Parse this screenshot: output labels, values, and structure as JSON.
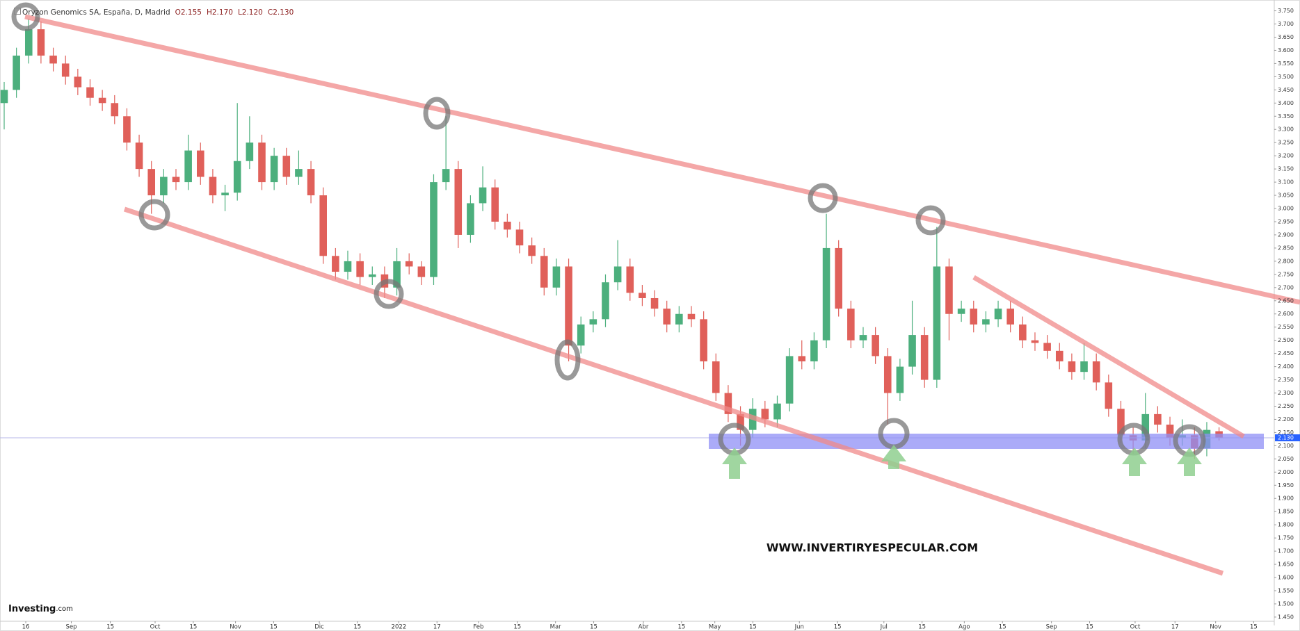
{
  "chart_data": {
    "type": "candlestick",
    "title": "Oryzon Genomics SA, España, D, Madrid",
    "ohlc_legend": [
      "O2.155",
      "H2.170",
      "L2.120",
      "C2.130"
    ],
    "last_price_label": "2.130",
    "watermark": "WWW.INVERTIRYESPECULAR.COM",
    "logo": [
      "Investing",
      ".com"
    ],
    "up_color": "#4caf7d",
    "down_color": "#e0605a",
    "open": [
      3.4,
      3.45,
      3.58,
      3.68,
      3.58,
      3.55,
      3.5,
      3.46,
      3.42,
      3.4,
      3.35,
      3.25,
      3.15,
      3.05,
      3.12,
      3.1,
      3.22,
      3.12,
      3.05,
      3.06,
      3.18,
      3.25,
      3.1,
      3.2,
      3.12,
      3.15,
      3.05,
      2.82,
      2.76,
      2.8,
      2.74,
      2.75,
      2.7,
      2.8,
      2.78,
      2.74,
      3.1,
      3.15,
      2.9,
      3.02,
      3.08,
      2.95,
      2.92,
      2.86,
      2.82,
      2.7,
      2.78,
      2.48,
      2.56,
      2.58,
      2.72,
      2.78,
      2.68,
      2.66,
      2.62,
      2.56,
      2.6,
      2.58,
      2.42,
      2.3,
      2.22,
      2.16,
      2.24,
      2.2,
      2.26,
      2.44,
      2.42,
      2.5,
      2.85,
      2.62,
      2.5,
      2.52,
      2.44,
      2.3,
      2.4,
      2.52,
      2.35,
      2.78,
      2.6,
      2.62,
      2.56,
      2.58,
      2.62,
      2.56,
      2.5,
      2.49,
      2.46,
      2.42,
      2.38,
      2.42,
      2.34,
      2.24,
      2.14,
      2.12,
      2.22,
      2.18,
      2.13,
      2.14,
      2.09,
      2.155
    ],
    "high": [
      3.48,
      3.61,
      3.72,
      3.71,
      3.61,
      3.58,
      3.53,
      3.49,
      3.45,
      3.43,
      3.38,
      3.28,
      3.18,
      3.15,
      3.15,
      3.28,
      3.25,
      3.15,
      3.09,
      3.4,
      3.35,
      3.28,
      3.23,
      3.23,
      3.22,
      3.18,
      3.08,
      2.85,
      2.84,
      2.83,
      2.78,
      2.78,
      2.85,
      2.83,
      2.8,
      3.13,
      3.35,
      3.18,
      3.05,
      3.16,
      3.11,
      2.98,
      2.95,
      2.89,
      2.85,
      2.81,
      2.81,
      2.59,
      2.61,
      2.75,
      2.88,
      2.81,
      2.71,
      2.69,
      2.65,
      2.63,
      2.63,
      2.61,
      2.45,
      2.33,
      2.25,
      2.28,
      2.27,
      2.29,
      2.47,
      2.5,
      2.53,
      2.98,
      2.88,
      2.65,
      2.55,
      2.55,
      2.47,
      2.43,
      2.65,
      2.55,
      2.93,
      2.81,
      2.65,
      2.65,
      2.61,
      2.65,
      2.65,
      2.59,
      2.53,
      2.52,
      2.49,
      2.45,
      2.49,
      2.45,
      2.37,
      2.27,
      2.17,
      2.3,
      2.25,
      2.21,
      2.2,
      2.17,
      2.19,
      2.17
    ],
    "low": [
      3.3,
      3.42,
      3.55,
      3.55,
      3.52,
      3.47,
      3.43,
      3.39,
      3.37,
      3.32,
      3.22,
      3.12,
      2.98,
      3.02,
      3.07,
      3.07,
      3.09,
      3.02,
      2.99,
      3.03,
      3.15,
      3.07,
      3.07,
      3.09,
      3.09,
      3.02,
      2.79,
      2.73,
      2.73,
      2.71,
      2.71,
      2.66,
      2.67,
      2.75,
      2.71,
      2.71,
      3.07,
      2.85,
      2.87,
      2.99,
      2.92,
      2.89,
      2.83,
      2.79,
      2.67,
      2.67,
      2.42,
      2.45,
      2.53,
      2.55,
      2.69,
      2.65,
      2.63,
      2.59,
      2.53,
      2.53,
      2.55,
      2.39,
      2.27,
      2.19,
      2.1,
      2.13,
      2.17,
      2.17,
      2.23,
      2.39,
      2.39,
      2.47,
      2.59,
      2.47,
      2.47,
      2.41,
      2.18,
      2.27,
      2.37,
      2.32,
      2.32,
      2.5,
      2.57,
      2.53,
      2.53,
      2.55,
      2.53,
      2.47,
      2.46,
      2.43,
      2.39,
      2.35,
      2.35,
      2.31,
      2.21,
      2.11,
      2.07,
      2.09,
      2.15,
      2.1,
      2.1,
      2.05,
      2.06,
      2.12
    ],
    "close": [
      3.45,
      3.58,
      3.68,
      3.58,
      3.55,
      3.5,
      3.46,
      3.42,
      3.4,
      3.35,
      3.25,
      3.15,
      3.05,
      3.12,
      3.1,
      3.22,
      3.12,
      3.05,
      3.06,
      3.18,
      3.25,
      3.1,
      3.2,
      3.12,
      3.15,
      3.05,
      2.82,
      2.76,
      2.8,
      2.74,
      2.75,
      2.7,
      2.8,
      2.78,
      2.74,
      3.1,
      3.15,
      2.9,
      3.02,
      3.08,
      2.95,
      2.92,
      2.86,
      2.82,
      2.7,
      2.78,
      2.48,
      2.56,
      2.58,
      2.72,
      2.78,
      2.68,
      2.66,
      2.62,
      2.56,
      2.6,
      2.58,
      2.42,
      2.3,
      2.22,
      2.16,
      2.24,
      2.2,
      2.26,
      2.44,
      2.42,
      2.5,
      2.85,
      2.62,
      2.5,
      2.52,
      2.44,
      2.3,
      2.4,
      2.52,
      2.35,
      2.78,
      2.6,
      2.62,
      2.56,
      2.58,
      2.62,
      2.56,
      2.5,
      2.49,
      2.46,
      2.42,
      2.38,
      2.42,
      2.34,
      2.24,
      2.14,
      2.12,
      2.22,
      2.18,
      2.13,
      2.14,
      2.09,
      2.16,
      2.13
    ],
    "xlim": [
      -0.34,
      103.5
    ],
    "xticks": [
      {
        "value": 1.76,
        "label": "16"
      },
      {
        "value": 5.47,
        "label": "Sep"
      },
      {
        "value": 8.65,
        "label": "15"
      },
      {
        "value": 12.3,
        "label": "Oct"
      },
      {
        "value": 15.41,
        "label": "15"
      },
      {
        "value": 18.85,
        "label": "Nov"
      },
      {
        "value": 21.96,
        "label": "15"
      },
      {
        "value": 25.68,
        "label": "Dic"
      },
      {
        "value": 28.78,
        "label": "15"
      },
      {
        "value": 32.16,
        "label": "2022"
      },
      {
        "value": 35.27,
        "label": "17"
      },
      {
        "value": 38.65,
        "label": "Feb"
      },
      {
        "value": 41.82,
        "label": "15"
      },
      {
        "value": 44.93,
        "label": "Mar"
      },
      {
        "value": 48.04,
        "label": "15"
      },
      {
        "value": 52.09,
        "label": "Abr"
      },
      {
        "value": 55.2,
        "label": "15"
      },
      {
        "value": 57.91,
        "label": "May"
      },
      {
        "value": 61.01,
        "label": "15"
      },
      {
        "value": 64.8,
        "label": "Jun"
      },
      {
        "value": 67.91,
        "label": "15"
      },
      {
        "value": 71.69,
        "label": "Jul"
      },
      {
        "value": 74.8,
        "label": "15"
      },
      {
        "value": 78.24,
        "label": "Ago"
      },
      {
        "value": 81.35,
        "label": "15"
      },
      {
        "value": 85.34,
        "label": "Sep"
      },
      {
        "value": 88.45,
        "label": "15"
      },
      {
        "value": 92.16,
        "label": "Oct"
      },
      {
        "value": 95.41,
        "label": "17"
      },
      {
        "value": 98.72,
        "label": "Nov"
      },
      {
        "value": 101.82,
        "label": "15"
      }
    ],
    "ylim": [
      1.434,
      3.791
    ],
    "yticks": [
      {
        "value": 1.45,
        "label": "1.450"
      },
      {
        "value": 1.5,
        "label": "1.500"
      },
      {
        "value": 1.55,
        "label": "1.550"
      },
      {
        "value": 1.6,
        "label": "1.600"
      },
      {
        "value": 1.65,
        "label": "1.650"
      },
      {
        "value": 1.7,
        "label": "1.700"
      },
      {
        "value": 1.75,
        "label": "1.750"
      },
      {
        "value": 1.8,
        "label": "1.800"
      },
      {
        "value": 1.85,
        "label": "1.850"
      },
      {
        "value": 1.9,
        "label": "1.900"
      },
      {
        "value": 1.95,
        "label": "1.950"
      },
      {
        "value": 2.0,
        "label": "2.000"
      },
      {
        "value": 2.05,
        "label": "2.050"
      },
      {
        "value": 2.1,
        "label": "2.100"
      },
      {
        "value": 2.15,
        "label": "2.150"
      },
      {
        "value": 2.2,
        "label": "2.200"
      },
      {
        "value": 2.25,
        "label": "2.250"
      },
      {
        "value": 2.3,
        "label": "2.300"
      },
      {
        "value": 2.35,
        "label": "2.350"
      },
      {
        "value": 2.4,
        "label": "2.400"
      },
      {
        "value": 2.45,
        "label": "2.450"
      },
      {
        "value": 2.5,
        "label": "2.500"
      },
      {
        "value": 2.55,
        "label": "2.550"
      },
      {
        "value": 2.6,
        "label": "2.600"
      },
      {
        "value": 2.65,
        "label": "2.650"
      },
      {
        "value": 2.7,
        "label": "2.700"
      },
      {
        "value": 2.75,
        "label": "2.750"
      },
      {
        "value": 2.8,
        "label": "2.800"
      },
      {
        "value": 2.85,
        "label": "2.850"
      },
      {
        "value": 2.9,
        "label": "2.900"
      },
      {
        "value": 2.95,
        "label": "2.950"
      },
      {
        "value": 3.0,
        "label": "3.000"
      },
      {
        "value": 3.05,
        "label": "3.050"
      },
      {
        "value": 3.1,
        "label": "3.100"
      },
      {
        "value": 3.15,
        "label": "3.150"
      },
      {
        "value": 3.2,
        "label": "3.200"
      },
      {
        "value": 3.25,
        "label": "3.250"
      },
      {
        "value": 3.3,
        "label": "3.300"
      },
      {
        "value": 3.35,
        "label": "3.350"
      },
      {
        "value": 3.4,
        "label": "3.400"
      },
      {
        "value": 3.45,
        "label": "3.450"
      },
      {
        "value": 3.5,
        "label": "3.500"
      },
      {
        "value": 3.55,
        "label": "3.550"
      },
      {
        "value": 3.6,
        "label": "3.600"
      },
      {
        "value": 3.65,
        "label": "3.650"
      },
      {
        "value": 3.7,
        "label": "3.700"
      },
      {
        "value": 3.75,
        "label": "3.750"
      }
    ]
  }
}
